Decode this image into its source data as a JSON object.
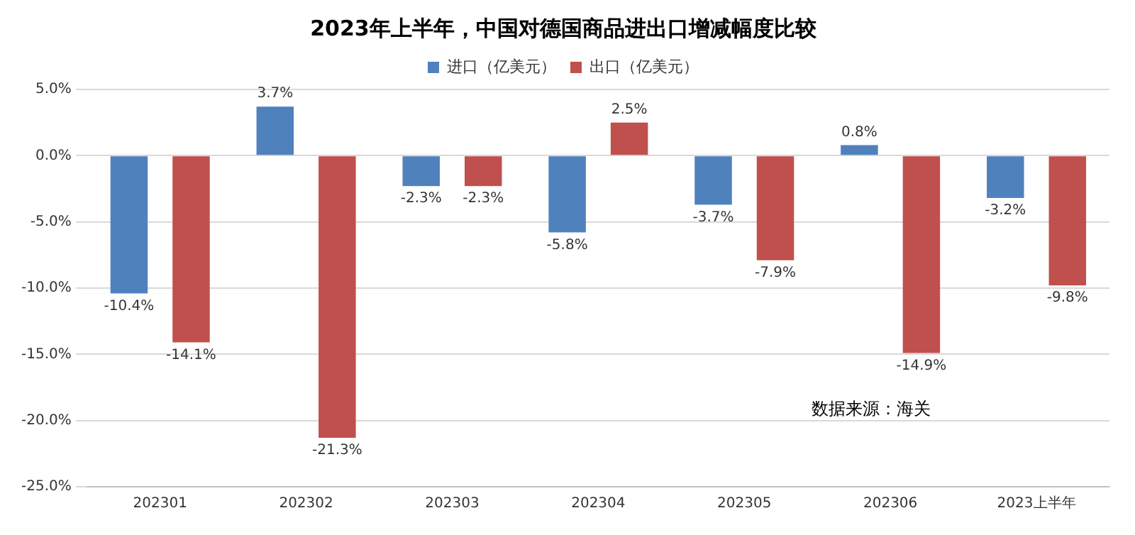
{
  "chart_data": {
    "type": "bar",
    "title": "2023年上半年，中国对德国商品进出口增减幅度比较",
    "categories": [
      "202301",
      "202302",
      "202303",
      "202304",
      "202305",
      "202306",
      "2023上半年"
    ],
    "series": [
      {
        "name": "进口（亿美元）",
        "color": "#4f81bd",
        "values": [
          -10.4,
          3.7,
          -2.3,
          -5.8,
          -3.7,
          0.8,
          -3.2
        ],
        "value_labels": [
          "-10.4%",
          "3.7%",
          "-2.3%",
          "-5.8%",
          "-3.7%",
          "0.8%",
          "-3.2%"
        ]
      },
      {
        "name": "出口（亿美元）",
        "color": "#c0504d",
        "values": [
          -14.1,
          -21.3,
          -2.3,
          2.5,
          -7.9,
          -14.9,
          -9.8
        ],
        "value_labels": [
          "-14.1%",
          "-21.3%",
          "-2.3%",
          "2.5%",
          "-7.9%",
          "-14.9%",
          "-9.8%"
        ]
      }
    ],
    "ylim": [
      -25,
      5
    ],
    "yticks": [
      {
        "value": 5,
        "label": "5.0%"
      },
      {
        "value": 0,
        "label": "0.0%"
      },
      {
        "value": -5,
        "label": "-5.0%"
      },
      {
        "value": -10,
        "label": "-10.0%"
      },
      {
        "value": -15,
        "label": "-15.0%"
      },
      {
        "value": -20,
        "label": "-20.0%"
      },
      {
        "value": -25,
        "label": "-25.0%"
      }
    ],
    "grid": "y",
    "legend": "top",
    "annotations": [
      "数据来源：海关"
    ]
  }
}
